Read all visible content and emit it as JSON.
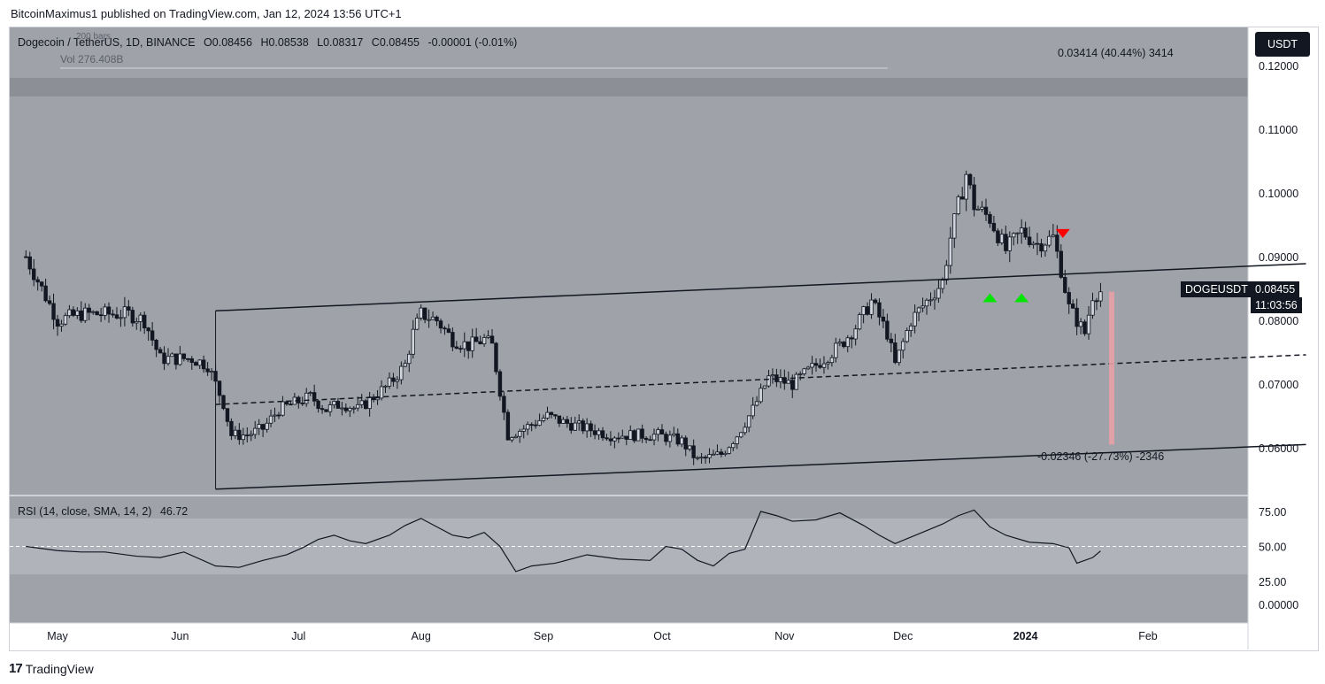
{
  "header": {
    "publisher_line": "BitcoinMaximus1 published on TradingView.com, Jan 12, 2024 13:56 UTC+1"
  },
  "legend": {
    "symbol": "Dogecoin / TetherUS, 1D, BINANCE",
    "o_label": "O",
    "o_value": "0.08456",
    "h_label": "H",
    "h_value": "0.08538",
    "l_label": "L",
    "l_value": "0.08317",
    "c_label": "C",
    "c_value": "0.08455",
    "change": "-0.00001 (-0.01%)",
    "bars_partial": "200 bars",
    "volume": "Vol 276.408B"
  },
  "currency_button": "USDT",
  "price_tag": {
    "symbol": "DOGEUSDT",
    "price": "0.08455",
    "countdown": "11:03:56"
  },
  "measure_up": "0.03414 (40.44%) 3414",
  "measure_down": "-0.02346 (-27.73%) -2346",
  "rsi": {
    "label": "RSI (14, close, SMA, 14, 2)",
    "value": "46.72"
  },
  "footer": {
    "brand": "TradingView"
  },
  "colors": {
    "background": "#9fa2a8",
    "band": "#b0b3b9",
    "candle": "#131722",
    "up_arrow": "#00e600",
    "down_arrow": "#ff0000",
    "measure": "#e8a0a6"
  },
  "chart_data": {
    "type": "candlestick",
    "price_axis": {
      "ticks": [
        0.06,
        0.07,
        0.08,
        0.09,
        0.1,
        0.11,
        0.12
      ],
      "tick_labels": [
        "0.06000",
        "0.07000",
        "0.08000",
        "0.09000",
        "0.10000",
        "0.11000",
        "0.12000"
      ],
      "range": [
        0.0525,
        0.126
      ]
    },
    "time_axis": {
      "labels": [
        "May",
        "Jun",
        "Jul",
        "Aug",
        "Sep",
        "Oct",
        "Nov",
        "Dec",
        "2024",
        "Feb"
      ],
      "label_day": [
        0,
        31,
        61,
        92,
        123,
        153,
        184,
        214,
        245,
        276
      ]
    },
    "rsi_axis": {
      "ticks": [
        0,
        25,
        50,
        75
      ],
      "tick_labels": [
        "0.00000",
        "25.00",
        "50.00",
        "75.00"
      ],
      "band": [
        30,
        70
      ],
      "mid": 50
    },
    "close_day": [
      [
        -8,
        0.09
      ],
      [
        -4,
        0.085
      ],
      [
        0,
        0.08
      ],
      [
        6,
        0.081
      ],
      [
        12,
        0.081
      ],
      [
        18,
        0.081
      ],
      [
        22,
        0.08
      ],
      [
        26,
        0.074
      ],
      [
        30,
        0.074
      ],
      [
        34,
        0.074
      ],
      [
        38,
        0.073
      ],
      [
        40,
        0.07
      ],
      [
        42,
        0.067
      ],
      [
        44,
        0.062
      ],
      [
        48,
        0.062
      ],
      [
        52,
        0.063
      ],
      [
        56,
        0.066
      ],
      [
        60,
        0.067
      ],
      [
        64,
        0.068
      ],
      [
        68,
        0.066
      ],
      [
        72,
        0.067
      ],
      [
        76,
        0.066
      ],
      [
        80,
        0.068
      ],
      [
        84,
        0.07
      ],
      [
        88,
        0.073
      ],
      [
        90,
        0.078
      ],
      [
        92,
        0.081
      ],
      [
        96,
        0.08
      ],
      [
        100,
        0.077
      ],
      [
        104,
        0.076
      ],
      [
        108,
        0.077
      ],
      [
        110,
        0.076
      ],
      [
        112,
        0.069
      ],
      [
        114,
        0.062
      ],
      [
        118,
        0.063
      ],
      [
        124,
        0.065
      ],
      [
        128,
        0.064
      ],
      [
        134,
        0.063
      ],
      [
        140,
        0.062
      ],
      [
        146,
        0.062
      ],
      [
        152,
        0.062
      ],
      [
        158,
        0.061
      ],
      [
        162,
        0.058
      ],
      [
        168,
        0.059
      ],
      [
        172,
        0.062
      ],
      [
        176,
        0.066
      ],
      [
        180,
        0.071
      ],
      [
        186,
        0.07
      ],
      [
        192,
        0.073
      ],
      [
        198,
        0.076
      ],
      [
        202,
        0.079
      ],
      [
        206,
        0.083
      ],
      [
        210,
        0.078
      ],
      [
        212,
        0.073
      ],
      [
        216,
        0.08
      ],
      [
        220,
        0.083
      ],
      [
        224,
        0.086
      ],
      [
        226,
        0.093
      ],
      [
        230,
        0.103
      ],
      [
        232,
        0.098
      ],
      [
        236,
        0.096
      ],
      [
        240,
        0.091
      ],
      [
        244,
        0.094
      ],
      [
        248,
        0.092
      ],
      [
        252,
        0.093
      ],
      [
        254,
        0.088
      ],
      [
        256,
        0.082
      ],
      [
        260,
        0.078
      ],
      [
        262,
        0.084
      ],
      [
        264,
        0.08455
      ]
    ],
    "channel": {
      "upper": [
        [
          40,
          0.0815
        ],
        [
          316,
          0.0889
        ]
      ],
      "mid": [
        [
          40,
          0.0668
        ],
        [
          316,
          0.0746
        ]
      ],
      "lower": [
        [
          40,
          0.0535
        ],
        [
          316,
          0.0605
        ]
      ]
    },
    "rsi_values": [
      [
        -8,
        50
      ],
      [
        0,
        47
      ],
      [
        6,
        46
      ],
      [
        12,
        46
      ],
      [
        20,
        43
      ],
      [
        26,
        42
      ],
      [
        32,
        46
      ],
      [
        40,
        36
      ],
      [
        46,
        35
      ],
      [
        52,
        40
      ],
      [
        58,
        44
      ],
      [
        62,
        49
      ],
      [
        66,
        55
      ],
      [
        70,
        58
      ],
      [
        74,
        54
      ],
      [
        78,
        52
      ],
      [
        84,
        58
      ],
      [
        88,
        65
      ],
      [
        92,
        70
      ],
      [
        96,
        64
      ],
      [
        100,
        58
      ],
      [
        104,
        56
      ],
      [
        108,
        60
      ],
      [
        112,
        50
      ],
      [
        116,
        32
      ],
      [
        120,
        36
      ],
      [
        126,
        38
      ],
      [
        134,
        44
      ],
      [
        142,
        41
      ],
      [
        150,
        40
      ],
      [
        154,
        50
      ],
      [
        158,
        48
      ],
      [
        162,
        40
      ],
      [
        166,
        36
      ],
      [
        170,
        45
      ],
      [
        174,
        48
      ],
      [
        178,
        75
      ],
      [
        182,
        72
      ],
      [
        186,
        68
      ],
      [
        192,
        69
      ],
      [
        198,
        74
      ],
      [
        204,
        65
      ],
      [
        208,
        58
      ],
      [
        212,
        52
      ],
      [
        218,
        59
      ],
      [
        224,
        66
      ],
      [
        228,
        72
      ],
      [
        232,
        76
      ],
      [
        236,
        64
      ],
      [
        240,
        58
      ],
      [
        246,
        53
      ],
      [
        252,
        52
      ],
      [
        256,
        49
      ],
      [
        258,
        38
      ],
      [
        262,
        42
      ],
      [
        264,
        46.72
      ]
    ],
    "markers": {
      "green_up_day": [
        236,
        244
      ],
      "red_down_day": [
        254
      ]
    }
  }
}
